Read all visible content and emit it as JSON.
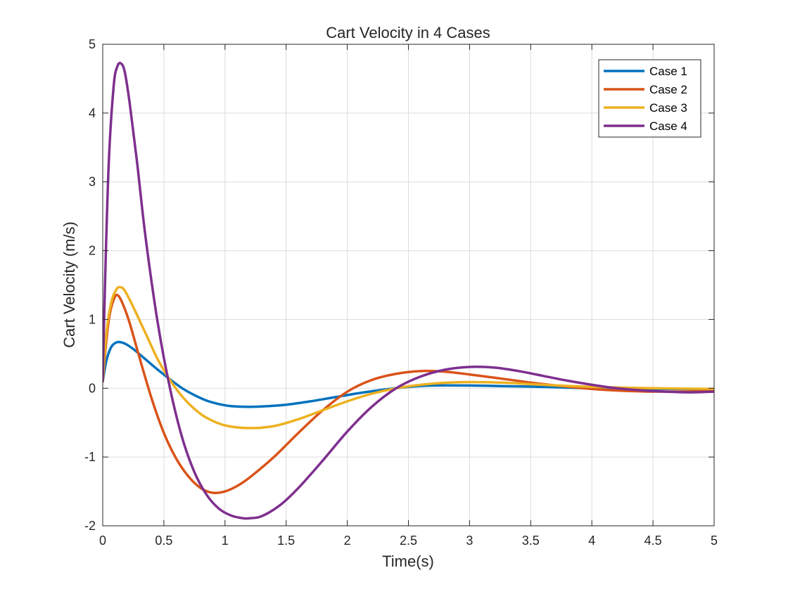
{
  "chart_data": {
    "type": "line",
    "title": "Cart Velocity in 4 Cases",
    "xlabel": "Time(s)",
    "ylabel": "Cart Velocity (m/s)",
    "xlim": [
      0,
      5
    ],
    "ylim": [
      -2,
      5
    ],
    "xticks": [
      0,
      0.5,
      1,
      1.5,
      2,
      2.5,
      3,
      3.5,
      4,
      4.5,
      5
    ],
    "xtick_labels": [
      "0",
      "0.5",
      "1",
      "1.5",
      "2",
      "2.5",
      "3",
      "3.5",
      "4",
      "4.5",
      "5"
    ],
    "yticks": [
      -2,
      -1,
      0,
      1,
      2,
      3,
      4,
      5
    ],
    "ytick_labels": [
      "-2",
      "-1",
      "0",
      "1",
      "2",
      "3",
      "4",
      "5"
    ],
    "grid": true,
    "legend_position": "top-right",
    "series": [
      {
        "name": "Case 1",
        "color": "#0072BD",
        "points": [
          [
            0,
            0.1
          ],
          [
            0.03,
            0.4
          ],
          [
            0.07,
            0.6
          ],
          [
            0.12,
            0.67
          ],
          [
            0.18,
            0.65
          ],
          [
            0.25,
            0.57
          ],
          [
            0.35,
            0.42
          ],
          [
            0.45,
            0.27
          ],
          [
            0.55,
            0.13
          ],
          [
            0.65,
            0.0
          ],
          [
            0.75,
            -0.1
          ],
          [
            0.85,
            -0.18
          ],
          [
            0.95,
            -0.23
          ],
          [
            1.05,
            -0.26
          ],
          [
            1.2,
            -0.27
          ],
          [
            1.35,
            -0.26
          ],
          [
            1.5,
            -0.24
          ],
          [
            1.7,
            -0.19
          ],
          [
            1.9,
            -0.13
          ],
          [
            2.1,
            -0.07
          ],
          [
            2.3,
            -0.02
          ],
          [
            2.5,
            0.02
          ],
          [
            2.7,
            0.04
          ],
          [
            3.0,
            0.04
          ],
          [
            3.3,
            0.03
          ],
          [
            3.6,
            0.02
          ],
          [
            4.0,
            0.0
          ],
          [
            4.5,
            -0.01
          ],
          [
            5.0,
            -0.01
          ]
        ]
      },
      {
        "name": "Case 2",
        "color": "#D95319",
        "points": [
          [
            0,
            0.1
          ],
          [
            0.03,
            0.7
          ],
          [
            0.06,
            1.1
          ],
          [
            0.1,
            1.33
          ],
          [
            0.13,
            1.34
          ],
          [
            0.17,
            1.2
          ],
          [
            0.22,
            0.95
          ],
          [
            0.3,
            0.45
          ],
          [
            0.4,
            -0.15
          ],
          [
            0.5,
            -0.65
          ],
          [
            0.6,
            -1.02
          ],
          [
            0.7,
            -1.28
          ],
          [
            0.8,
            -1.45
          ],
          [
            0.9,
            -1.52
          ],
          [
            1.0,
            -1.5
          ],
          [
            1.1,
            -1.42
          ],
          [
            1.2,
            -1.3
          ],
          [
            1.4,
            -1.0
          ],
          [
            1.6,
            -0.65
          ],
          [
            1.8,
            -0.32
          ],
          [
            2.0,
            -0.05
          ],
          [
            2.2,
            0.12
          ],
          [
            2.4,
            0.21
          ],
          [
            2.6,
            0.25
          ],
          [
            2.8,
            0.24
          ],
          [
            3.0,
            0.2
          ],
          [
            3.3,
            0.13
          ],
          [
            3.6,
            0.06
          ],
          [
            4.0,
            -0.01
          ],
          [
            4.3,
            -0.04
          ],
          [
            4.6,
            -0.05
          ],
          [
            5.0,
            -0.04
          ]
        ]
      },
      {
        "name": "Case 3",
        "color": "#EDB120",
        "points": [
          [
            0,
            0.1
          ],
          [
            0.03,
            0.8
          ],
          [
            0.07,
            1.25
          ],
          [
            0.11,
            1.43
          ],
          [
            0.14,
            1.47
          ],
          [
            0.18,
            1.42
          ],
          [
            0.25,
            1.18
          ],
          [
            0.35,
            0.8
          ],
          [
            0.45,
            0.42
          ],
          [
            0.55,
            0.12
          ],
          [
            0.65,
            -0.12
          ],
          [
            0.75,
            -0.3
          ],
          [
            0.85,
            -0.43
          ],
          [
            1.0,
            -0.54
          ],
          [
            1.2,
            -0.58
          ],
          [
            1.4,
            -0.55
          ],
          [
            1.6,
            -0.45
          ],
          [
            1.8,
            -0.32
          ],
          [
            2.0,
            -0.19
          ],
          [
            2.2,
            -0.08
          ],
          [
            2.4,
            0.0
          ],
          [
            2.6,
            0.05
          ],
          [
            2.8,
            0.08
          ],
          [
            3.0,
            0.09
          ],
          [
            3.3,
            0.08
          ],
          [
            3.6,
            0.05
          ],
          [
            4.0,
            0.02
          ],
          [
            4.5,
            0.0
          ],
          [
            5.0,
            -0.01
          ]
        ]
      },
      {
        "name": "Case 4",
        "color": "#7E2F8E",
        "points": [
          [
            0,
            0.1
          ],
          [
            0.02,
            1.6
          ],
          [
            0.05,
            3.3
          ],
          [
            0.09,
            4.4
          ],
          [
            0.12,
            4.68
          ],
          [
            0.15,
            4.72
          ],
          [
            0.18,
            4.6
          ],
          [
            0.22,
            4.15
          ],
          [
            0.28,
            3.3
          ],
          [
            0.35,
            2.2
          ],
          [
            0.45,
            0.95
          ],
          [
            0.55,
            0.0
          ],
          [
            0.65,
            -0.72
          ],
          [
            0.75,
            -1.22
          ],
          [
            0.85,
            -1.55
          ],
          [
            0.95,
            -1.75
          ],
          [
            1.05,
            -1.85
          ],
          [
            1.15,
            -1.89
          ],
          [
            1.2,
            -1.89
          ],
          [
            1.3,
            -1.86
          ],
          [
            1.45,
            -1.7
          ],
          [
            1.6,
            -1.45
          ],
          [
            1.8,
            -1.05
          ],
          [
            2.0,
            -0.63
          ],
          [
            2.2,
            -0.27
          ],
          [
            2.4,
            0.0
          ],
          [
            2.6,
            0.17
          ],
          [
            2.8,
            0.27
          ],
          [
            3.0,
            0.31
          ],
          [
            3.2,
            0.3
          ],
          [
            3.4,
            0.25
          ],
          [
            3.6,
            0.18
          ],
          [
            3.8,
            0.11
          ],
          [
            4.0,
            0.05
          ],
          [
            4.2,
            0.0
          ],
          [
            4.4,
            -0.03
          ],
          [
            4.6,
            -0.05
          ],
          [
            4.8,
            -0.06
          ],
          [
            5.0,
            -0.05
          ]
        ]
      }
    ]
  }
}
